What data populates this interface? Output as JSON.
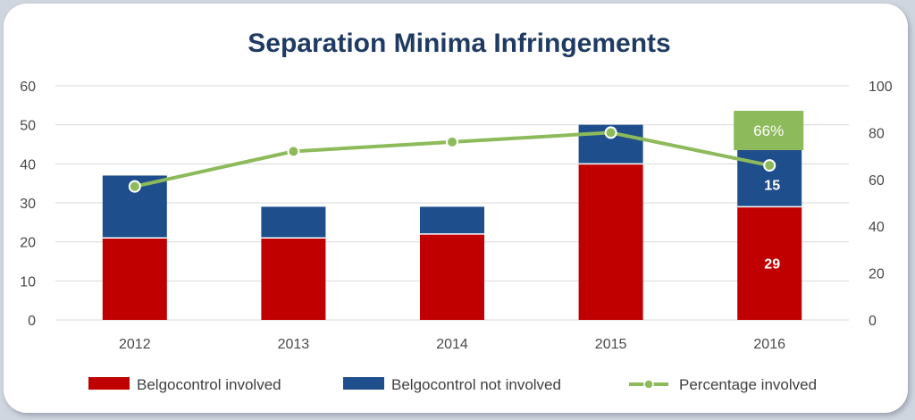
{
  "chart_data": {
    "type": "bar",
    "stacked": true,
    "title": "Separation Minima Infringements",
    "categories": [
      "2012",
      "2013",
      "2014",
      "2015",
      "2016"
    ],
    "series": [
      {
        "name": "Belgocontrol involved",
        "values": [
          21,
          21,
          22,
          40,
          29
        ],
        "color": "#c00000",
        "axis": "left"
      },
      {
        "name": "Belgocontrol not involved",
        "values": [
          16,
          8,
          7,
          10,
          15
        ],
        "color": "#1f4e8c",
        "axis": "left"
      },
      {
        "name": "Percentage involved",
        "type": "line",
        "values": [
          57,
          72,
          76,
          80,
          66
        ],
        "color": "#8dba5a",
        "axis": "right"
      }
    ],
    "ylim": [
      0,
      60
    ],
    "yticks": [
      "0",
      "10",
      "20",
      "30",
      "40",
      "50",
      "60"
    ],
    "y2lim": [
      0,
      100
    ],
    "y2ticks": [
      "0",
      "20",
      "40",
      "60",
      "80",
      "100"
    ],
    "grid": true,
    "legend_position": "bottom",
    "data_labels": [
      {
        "category": "2016",
        "series": "Belgocontrol not involved",
        "text": "15"
      },
      {
        "category": "2016",
        "series": "Belgocontrol involved",
        "text": "29"
      }
    ],
    "callout": {
      "category": "2016",
      "text": "66%",
      "color": "#8dba5a"
    }
  }
}
